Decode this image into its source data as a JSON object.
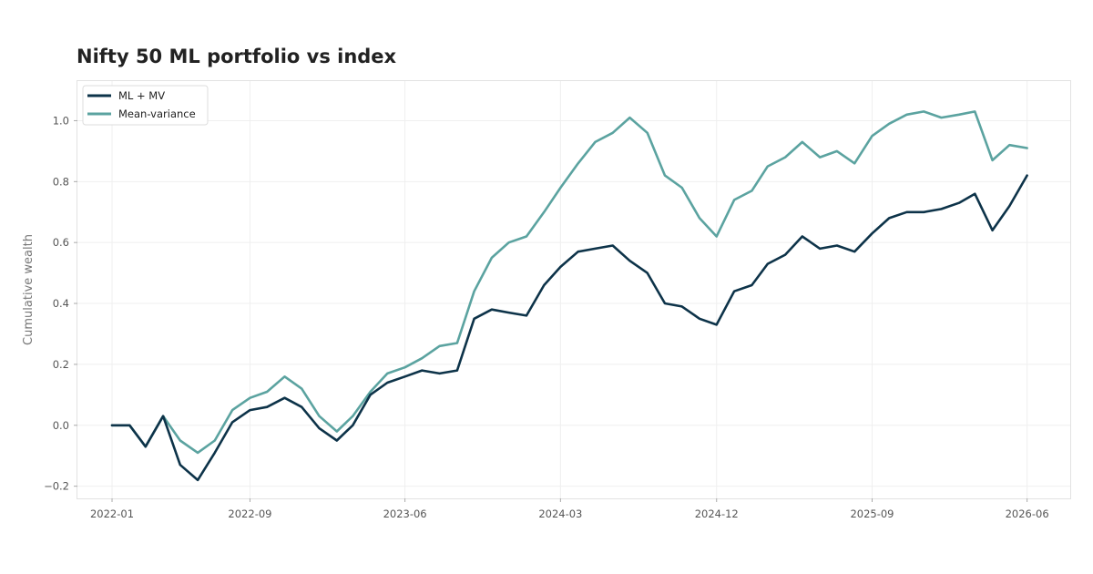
{
  "chart_data": {
    "type": "line",
    "title": "Nifty 50 ML portfolio vs index",
    "xlabel": "",
    "ylabel": "Cumulative wealth",
    "x_tick_labels": [
      "2022-01",
      "2022-09",
      "2023-06",
      "2024-03",
      "2024-12",
      "2025-09",
      "2026-06"
    ],
    "y_tick_labels": [
      "−0.2",
      "0.0",
      "0.2",
      "0.4",
      "0.6",
      "0.8",
      "1.0"
    ],
    "y_ticks": [
      -0.2,
      0.0,
      0.2,
      0.4,
      0.6,
      0.8,
      1.0
    ],
    "xlim": [
      "2021-11-01",
      "2026-08-16"
    ],
    "ylim": [
      -0.24,
      1.13
    ],
    "grid": true,
    "legend_position": "top-left",
    "x": [
      "2022-01-01",
      "2022-02-01",
      "2022-03-01",
      "2022-04-01",
      "2022-05-01",
      "2022-06-01",
      "2022-07-01",
      "2022-08-01",
      "2022-09-01",
      "2022-10-01",
      "2022-11-01",
      "2022-12-01",
      "2023-01-01",
      "2023-02-01",
      "2023-03-01",
      "2023-04-01",
      "2023-05-01",
      "2023-06-01",
      "2023-07-01",
      "2023-08-01",
      "2023-09-01",
      "2023-10-01",
      "2023-11-01",
      "2023-12-01",
      "2024-01-01",
      "2024-02-01",
      "2024-03-01",
      "2024-04-01",
      "2024-05-01",
      "2024-06-01",
      "2024-07-01",
      "2024-08-01",
      "2024-09-01",
      "2024-10-01",
      "2024-11-01",
      "2024-12-01",
      "2025-01-01",
      "2025-02-01",
      "2025-03-01",
      "2025-04-01",
      "2025-05-01",
      "2025-06-01",
      "2025-07-01",
      "2025-08-01",
      "2025-09-01",
      "2025-10-01",
      "2025-11-01",
      "2025-12-01",
      "2026-01-01",
      "2026-02-01",
      "2026-03-01",
      "2026-04-01",
      "2026-05-01",
      "2026-06-01"
    ],
    "series": [
      {
        "name": "ML + MV",
        "color": "#0d3349",
        "values": [
          0.0,
          0.0,
          -0.07,
          0.03,
          -0.13,
          -0.18,
          -0.09,
          0.01,
          0.05,
          0.06,
          0.09,
          0.06,
          -0.01,
          -0.05,
          0.0,
          0.1,
          0.14,
          0.16,
          0.18,
          0.17,
          0.18,
          0.35,
          0.38,
          0.37,
          0.36,
          0.46,
          0.52,
          0.57,
          0.58,
          0.59,
          0.54,
          0.5,
          0.4,
          0.39,
          0.35,
          0.33,
          0.44,
          0.46,
          0.53,
          0.56,
          0.62,
          0.58,
          0.59,
          0.57,
          0.63,
          0.68,
          0.7,
          0.7,
          0.71,
          0.73,
          0.76,
          0.64,
          0.72,
          0.82
        ]
      },
      {
        "name": "Mean-variance",
        "color": "#5ba3a0",
        "values": [
          0.0,
          0.0,
          -0.07,
          0.03,
          -0.05,
          -0.09,
          -0.05,
          0.05,
          0.09,
          0.11,
          0.16,
          0.12,
          0.03,
          -0.02,
          0.03,
          0.11,
          0.17,
          0.19,
          0.22,
          0.26,
          0.27,
          0.44,
          0.55,
          0.6,
          0.62,
          0.7,
          0.78,
          0.86,
          0.93,
          0.96,
          1.01,
          0.96,
          0.82,
          0.78,
          0.68,
          0.62,
          0.74,
          0.77,
          0.85,
          0.88,
          0.93,
          0.88,
          0.9,
          0.86,
          0.95,
          0.99,
          1.02,
          1.03,
          1.01,
          1.02,
          1.03,
          0.87,
          0.92,
          0.91
        ]
      }
    ]
  }
}
